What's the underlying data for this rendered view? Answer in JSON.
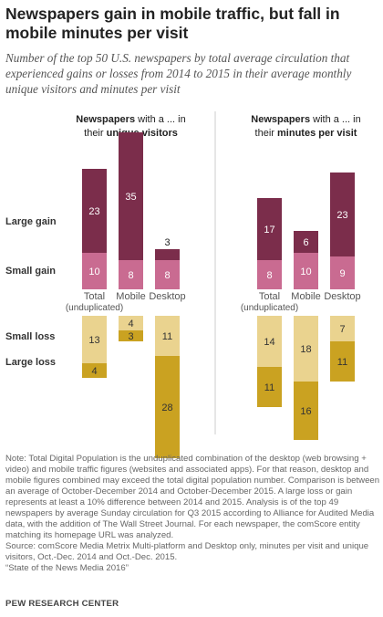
{
  "title": "Newspapers gain in mobile traffic, but fall in mobile minutes per visit",
  "subtitle": "Number of the top 50 U.S. newspapers by total average circulation that experienced gains or losses from 2014 to 2015 in their average monthly unique visitors and minutes per visit",
  "colors": {
    "large_gain": "#7b2d4b",
    "small_gain": "#c96b91",
    "small_loss": "#ead38f",
    "large_loss": "#caa221",
    "divider": "#cccccc"
  },
  "chart_data": {
    "type": "bar",
    "row_labels": [
      "Large gain",
      "Small gain",
      "Small loss",
      "Large loss"
    ],
    "panels": [
      {
        "header_prefix": "Newspapers with a ... in their",
        "header_bold": "unique visitors",
        "categories": [
          {
            "label": "Total",
            "sublabel": "(unduplicated)",
            "large_gain": 23,
            "small_gain": 10,
            "small_loss": 13,
            "large_loss": 4
          },
          {
            "label": "Mobile",
            "sublabel": "",
            "large_gain": 35,
            "small_gain": 8,
            "small_loss": 4,
            "large_loss": 3
          },
          {
            "label": "Desktop",
            "sublabel": "",
            "large_gain": 3,
            "small_gain": 8,
            "small_loss": 11,
            "large_loss": 28
          }
        ]
      },
      {
        "header_prefix": "Newspapers with a ... in their",
        "header_bold": "minutes per visit",
        "categories": [
          {
            "label": "Total",
            "sublabel": "(unduplicated)",
            "large_gain": 17,
            "small_gain": 8,
            "small_loss": 14,
            "large_loss": 11
          },
          {
            "label": "Mobile",
            "sublabel": "",
            "large_gain": 6,
            "small_gain": 10,
            "small_loss": 18,
            "large_loss": 16
          },
          {
            "label": "Desktop",
            "sublabel": "",
            "large_gain": 23,
            "small_gain": 9,
            "small_loss": 7,
            "large_loss": 11
          }
        ]
      }
    ]
  },
  "note": "Note: Total Digital Population is the unduplicated combination of the desktop (web browsing + video) and mobile traffic figures (websites and associated apps). For that reason, desktop and mobile figures combined may exceed the total digital population number. Comparison is between an average of October-December 2014 and October-December 2015. A large loss or gain represents at least a 10% difference between 2014 and 2015. Analysis is of the top 49 newspapers by average Sunday circulation for Q3 2015 according to Alliance for Audited Media data, with the addition of The Wall Street Journal. For each newspaper, the comScore entity matching its homepage URL was analyzed.",
  "source": "Source: comScore Media Metrix Multi-platform and Desktop only, minutes per visit and unique visitors, Oct.-Dec. 2014 and Oct.-Dec. 2015.",
  "report": "“State of the News Media 2016”",
  "footer": "PEW RESEARCH CENTER"
}
